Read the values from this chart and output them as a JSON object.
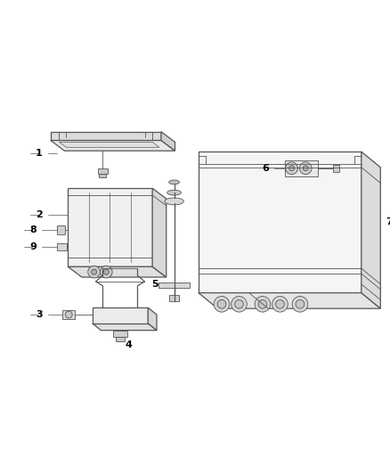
{
  "background_color": "#ffffff",
  "line_color": "#555555",
  "label_color": "#000000",
  "figsize": [
    4.38,
    5.33
  ],
  "dpi": 100
}
